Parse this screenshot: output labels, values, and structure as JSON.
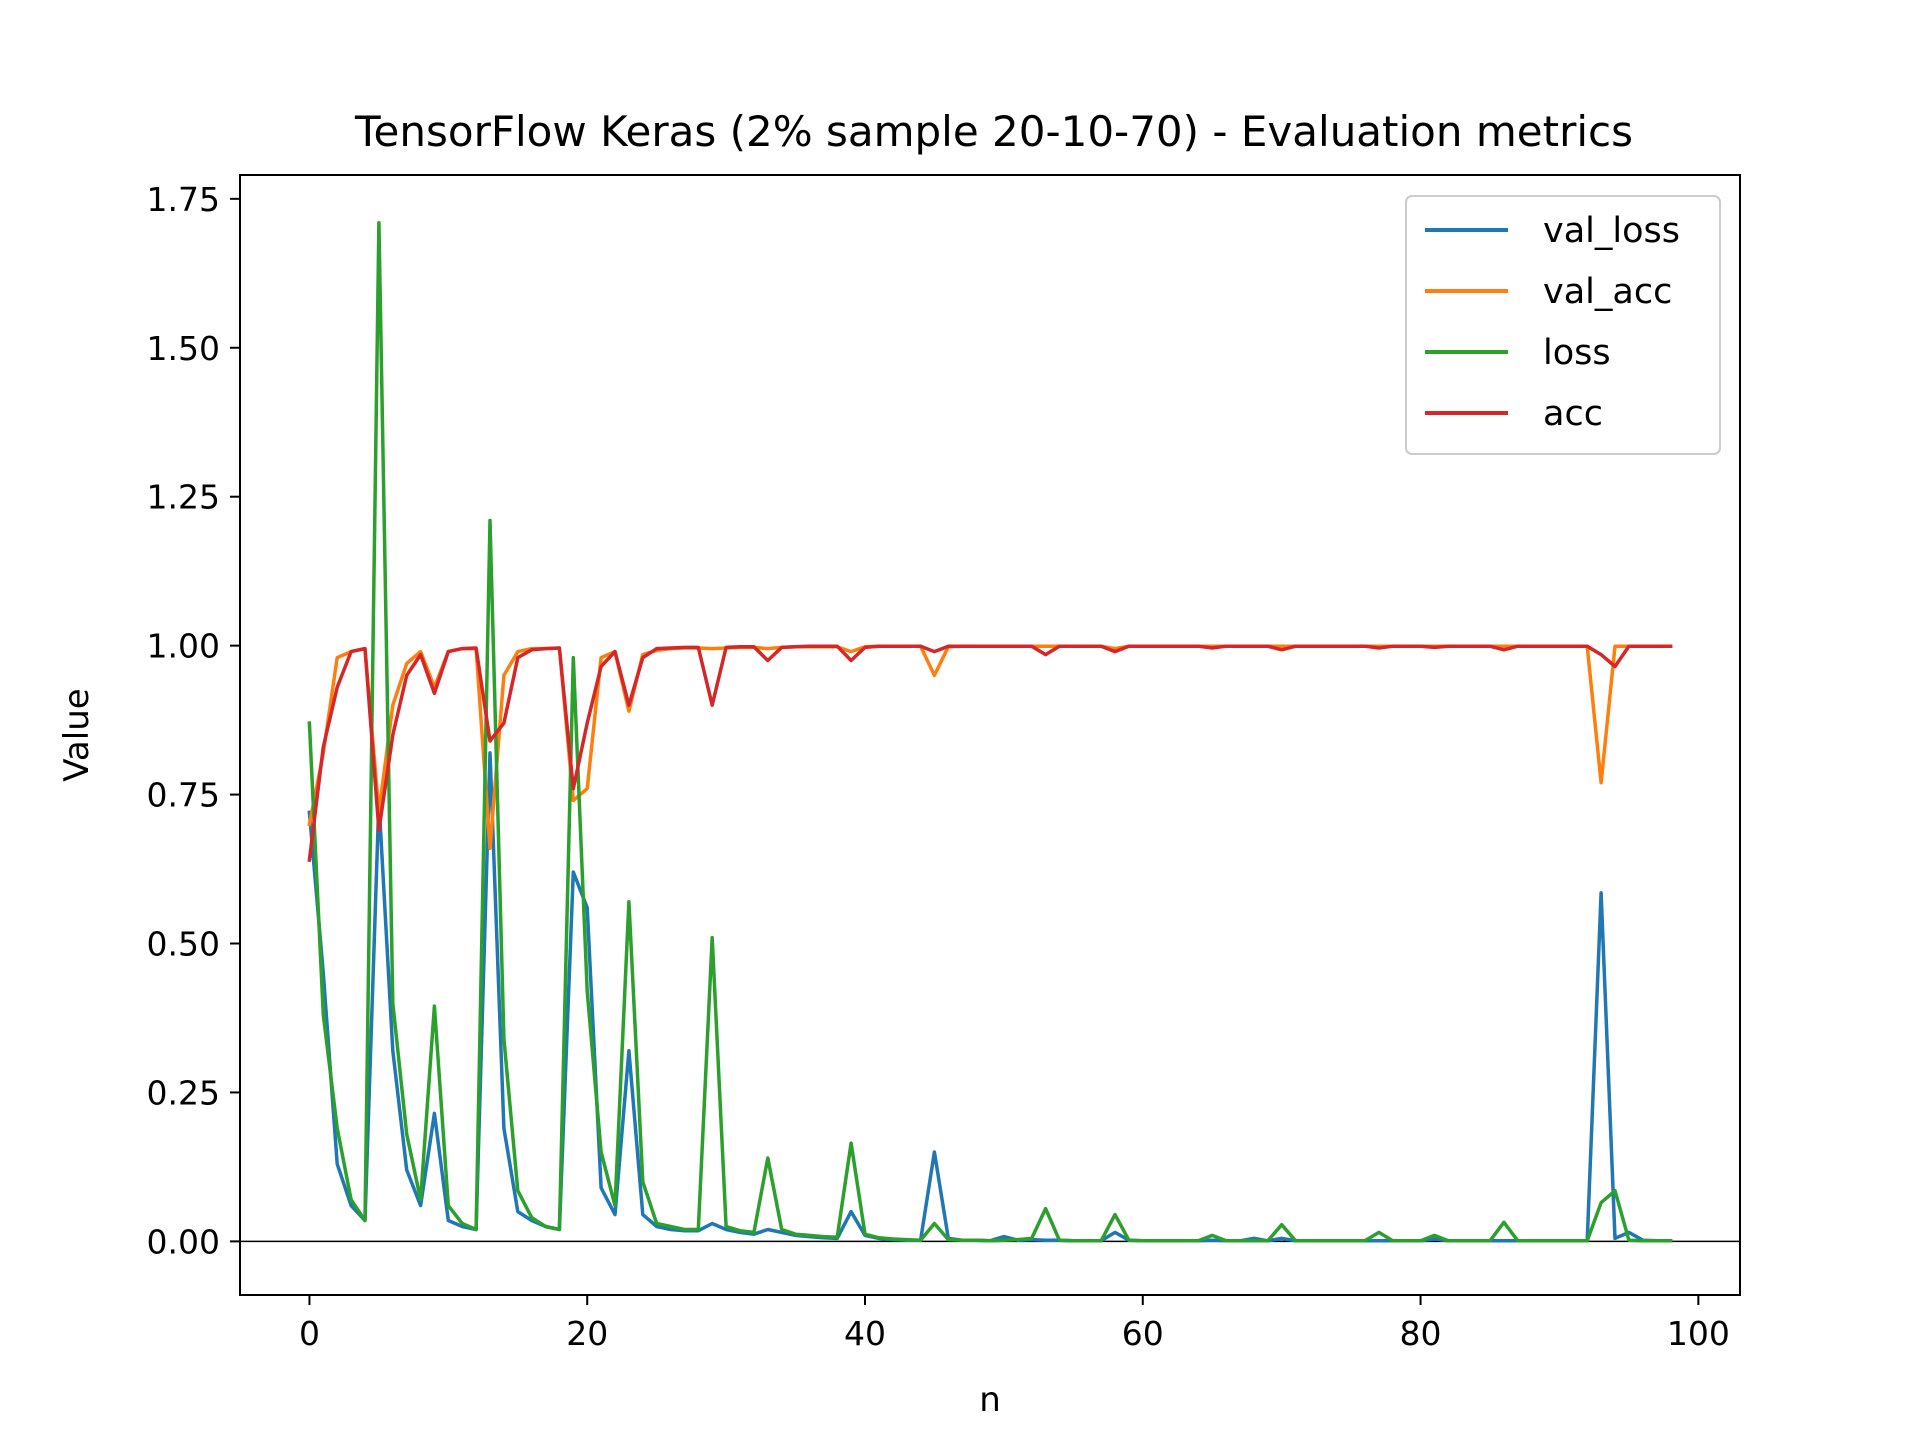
{
  "chart_data": {
    "type": "line",
    "title": "TensorFlow Keras (2% sample 20-10-70) - Evaluation metrics",
    "xlabel": "n",
    "ylabel": "Value",
    "xlim": [
      -5,
      103
    ],
    "ylim": [
      -0.09,
      1.79
    ],
    "xticks": [
      0,
      20,
      40,
      60,
      80,
      100
    ],
    "yticks": [
      0.0,
      0.25,
      0.5,
      0.75,
      1.0,
      1.25,
      1.5,
      1.75
    ],
    "xtick_labels": [
      "0",
      "20",
      "40",
      "60",
      "80",
      "100"
    ],
    "ytick_labels": [
      "0.00",
      "0.25",
      "0.50",
      "0.75",
      "1.00",
      "1.25",
      "1.50",
      "1.75"
    ],
    "hline_y": 0,
    "grid": false,
    "legend_position": "top-right",
    "series": [
      {
        "name": "val_loss",
        "color": "#1f77b4",
        "x": [
          0,
          1,
          2,
          3,
          4,
          5,
          6,
          7,
          8,
          9,
          10,
          11,
          12,
          13,
          14,
          15,
          16,
          17,
          18,
          19,
          20,
          21,
          22,
          23,
          24,
          25,
          26,
          27,
          28,
          29,
          30,
          31,
          32,
          33,
          34,
          35,
          36,
          37,
          38,
          39,
          40,
          41,
          42,
          43,
          44,
          45,
          46,
          47,
          48,
          49,
          50,
          51,
          52,
          53,
          54,
          55,
          56,
          57,
          58,
          59,
          60,
          61,
          62,
          63,
          64,
          65,
          66,
          67,
          68,
          69,
          70,
          71,
          72,
          73,
          74,
          75,
          76,
          77,
          78,
          79,
          80,
          81,
          82,
          83,
          84,
          85,
          86,
          87,
          88,
          89,
          90,
          91,
          92,
          93,
          94,
          95,
          96,
          97,
          98
        ],
        "values": [
          0.72,
          0.45,
          0.13,
          0.06,
          0.035,
          0.74,
          0.32,
          0.12,
          0.06,
          0.215,
          0.035,
          0.025,
          0.02,
          0.82,
          0.19,
          0.05,
          0.035,
          0.025,
          0.02,
          0.62,
          0.56,
          0.09,
          0.045,
          0.32,
          0.045,
          0.025,
          0.02,
          0.018,
          0.018,
          0.03,
          0.02,
          0.015,
          0.012,
          0.02,
          0.015,
          0.01,
          0.008,
          0.006,
          0.005,
          0.05,
          0.01,
          0.005,
          0.003,
          0.002,
          0.002,
          0.15,
          0.005,
          0.002,
          0.002,
          0.001,
          0.008,
          0.002,
          0.003,
          0.002,
          0.002,
          0.001,
          0.001,
          0.001,
          0.015,
          0.002,
          0.001,
          0.001,
          0.001,
          0.001,
          0.001,
          0.002,
          0.001,
          0.001,
          0.005,
          0.001,
          0.005,
          0.001,
          0.001,
          0.001,
          0.001,
          0.001,
          0.001,
          0.001,
          0.001,
          0.001,
          0.001,
          0.004,
          0.001,
          0.001,
          0.001,
          0.001,
          0.001,
          0.001,
          0.001,
          0.001,
          0.001,
          0.001,
          0.001,
          0.585,
          0.005,
          0.015,
          0.002,
          0.001,
          0.001
        ]
      },
      {
        "name": "val_acc",
        "color": "#ff7f0e",
        "x": [
          0,
          1,
          2,
          3,
          4,
          5,
          6,
          7,
          8,
          9,
          10,
          11,
          12,
          13,
          14,
          15,
          16,
          17,
          18,
          19,
          20,
          21,
          22,
          23,
          24,
          25,
          26,
          27,
          28,
          29,
          30,
          31,
          32,
          33,
          34,
          35,
          36,
          37,
          38,
          39,
          40,
          41,
          42,
          43,
          44,
          45,
          46,
          47,
          48,
          49,
          50,
          51,
          52,
          53,
          54,
          55,
          56,
          57,
          58,
          59,
          60,
          61,
          62,
          63,
          64,
          65,
          66,
          67,
          68,
          69,
          70,
          71,
          72,
          73,
          74,
          75,
          76,
          77,
          78,
          79,
          80,
          81,
          82,
          83,
          84,
          85,
          86,
          87,
          88,
          89,
          90,
          91,
          92,
          93,
          94,
          95,
          96,
          97,
          98
        ],
        "values": [
          0.7,
          0.82,
          0.98,
          0.99,
          0.995,
          0.72,
          0.9,
          0.97,
          0.99,
          0.93,
          0.99,
          0.995,
          0.995,
          0.66,
          0.95,
          0.99,
          0.995,
          0.995,
          0.996,
          0.74,
          0.76,
          0.98,
          0.99,
          0.89,
          0.985,
          0.992,
          0.995,
          0.996,
          0.996,
          0.995,
          0.996,
          0.997,
          0.997,
          0.995,
          0.997,
          0.998,
          0.998,
          0.998,
          0.998,
          0.99,
          0.998,
          0.999,
          0.999,
          0.999,
          0.999,
          0.95,
          0.998,
          0.999,
          0.999,
          0.999,
          0.999,
          0.999,
          0.999,
          0.999,
          0.999,
          0.999,
          0.999,
          0.999,
          0.995,
          0.999,
          0.999,
          0.999,
          0.999,
          0.999,
          0.999,
          0.999,
          0.999,
          0.999,
          0.999,
          0.999,
          0.999,
          0.999,
          0.999,
          0.999,
          0.999,
          0.999,
          0.999,
          0.999,
          0.999,
          0.999,
          0.999,
          0.999,
          0.999,
          0.999,
          0.999,
          0.999,
          0.999,
          0.999,
          0.999,
          0.999,
          0.999,
          0.999,
          0.999,
          0.77,
          0.999,
          0.999,
          0.999,
          0.999,
          0.999
        ]
      },
      {
        "name": "loss",
        "color": "#2ca02c",
        "x": [
          0,
          1,
          2,
          3,
          4,
          5,
          6,
          7,
          8,
          9,
          10,
          11,
          12,
          13,
          14,
          15,
          16,
          17,
          18,
          19,
          20,
          21,
          22,
          23,
          24,
          25,
          26,
          27,
          28,
          29,
          30,
          31,
          32,
          33,
          34,
          35,
          36,
          37,
          38,
          39,
          40,
          41,
          42,
          43,
          44,
          45,
          46,
          47,
          48,
          49,
          50,
          51,
          52,
          53,
          54,
          55,
          56,
          57,
          58,
          59,
          60,
          61,
          62,
          63,
          64,
          65,
          66,
          67,
          68,
          69,
          70,
          71,
          72,
          73,
          74,
          75,
          76,
          77,
          78,
          79,
          80,
          81,
          82,
          83,
          84,
          85,
          86,
          87,
          88,
          89,
          90,
          91,
          92,
          93,
          94,
          95,
          96,
          97,
          98
        ],
        "values": [
          0.87,
          0.38,
          0.19,
          0.07,
          0.035,
          1.71,
          0.4,
          0.18,
          0.07,
          0.395,
          0.06,
          0.03,
          0.02,
          1.21,
          0.34,
          0.085,
          0.04,
          0.025,
          0.02,
          0.98,
          0.42,
          0.15,
          0.06,
          0.57,
          0.1,
          0.03,
          0.025,
          0.02,
          0.02,
          0.51,
          0.025,
          0.018,
          0.015,
          0.14,
          0.02,
          0.012,
          0.01,
          0.008,
          0.007,
          0.165,
          0.012,
          0.006,
          0.004,
          0.003,
          0.002,
          0.03,
          0.003,
          0.002,
          0.002,
          0.001,
          0.002,
          0.003,
          0.005,
          0.055,
          0.002,
          0.001,
          0.001,
          0.001,
          0.045,
          0.002,
          0.001,
          0.001,
          0.001,
          0.001,
          0.001,
          0.01,
          0.001,
          0.001,
          0.001,
          0.001,
          0.028,
          0.001,
          0.001,
          0.001,
          0.001,
          0.001,
          0.001,
          0.015,
          0.001,
          0.001,
          0.001,
          0.01,
          0.001,
          0.001,
          0.001,
          0.001,
          0.032,
          0.001,
          0.001,
          0.001,
          0.001,
          0.001,
          0.001,
          0.065,
          0.085,
          0.002,
          0.001,
          0.001,
          0.001
        ]
      },
      {
        "name": "acc",
        "color": "#d62728",
        "x": [
          0,
          1,
          2,
          3,
          4,
          5,
          6,
          7,
          8,
          9,
          10,
          11,
          12,
          13,
          14,
          15,
          16,
          17,
          18,
          19,
          20,
          21,
          22,
          23,
          24,
          25,
          26,
          27,
          28,
          29,
          30,
          31,
          32,
          33,
          34,
          35,
          36,
          37,
          38,
          39,
          40,
          41,
          42,
          43,
          44,
          45,
          46,
          47,
          48,
          49,
          50,
          51,
          52,
          53,
          54,
          55,
          56,
          57,
          58,
          59,
          60,
          61,
          62,
          63,
          64,
          65,
          66,
          67,
          68,
          69,
          70,
          71,
          72,
          73,
          74,
          75,
          76,
          77,
          78,
          79,
          80,
          81,
          82,
          83,
          84,
          85,
          86,
          87,
          88,
          89,
          90,
          91,
          92,
          93,
          94,
          95,
          96,
          97,
          98
        ],
        "values": [
          0.64,
          0.83,
          0.93,
          0.99,
          0.995,
          0.69,
          0.85,
          0.95,
          0.985,
          0.92,
          0.99,
          0.995,
          0.996,
          0.84,
          0.87,
          0.98,
          0.993,
          0.995,
          0.996,
          0.76,
          0.87,
          0.965,
          0.99,
          0.9,
          0.98,
          0.995,
          0.996,
          0.997,
          0.997,
          0.9,
          0.997,
          0.998,
          0.998,
          0.975,
          0.997,
          0.998,
          0.999,
          0.999,
          0.999,
          0.975,
          0.997,
          0.999,
          0.999,
          0.999,
          0.999,
          0.99,
          0.999,
          0.999,
          0.999,
          0.999,
          0.999,
          0.999,
          0.999,
          0.985,
          0.999,
          0.999,
          0.999,
          0.999,
          0.99,
          0.999,
          0.999,
          0.999,
          0.999,
          0.999,
          0.999,
          0.996,
          0.999,
          0.999,
          0.999,
          0.999,
          0.993,
          0.999,
          0.999,
          0.999,
          0.999,
          0.999,
          0.999,
          0.996,
          0.999,
          0.999,
          0.999,
          0.997,
          0.999,
          0.999,
          0.999,
          0.999,
          0.993,
          0.999,
          0.999,
          0.999,
          0.999,
          0.999,
          0.999,
          0.985,
          0.965,
          0.999,
          0.999,
          0.999,
          0.999
        ]
      }
    ]
  }
}
